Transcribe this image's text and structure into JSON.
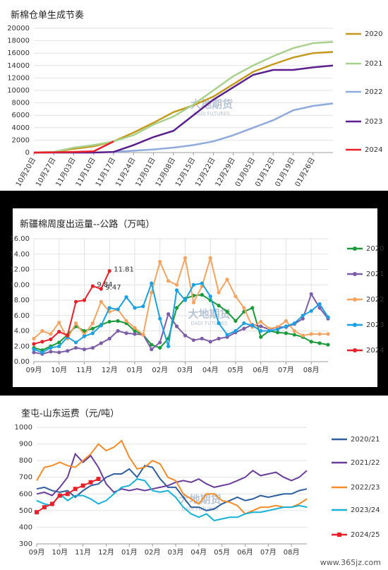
{
  "chart_data": [
    {
      "type": "line",
      "title": "新棉仓单生成节奏",
      "categories": [
        "10月20日",
        "10月27日",
        "11月03日",
        "11月10日",
        "11月17日",
        "11月24日",
        "12月01日",
        "12月08日",
        "12月15日",
        "12月22日",
        "12月29日",
        "01月05日",
        "01月12日",
        "01月19日",
        "01月26日",
        null
      ],
      "ylim": [
        0,
        20000
      ],
      "yticks": [
        0,
        2000,
        4000,
        6000,
        8000,
        10000,
        12000,
        14000,
        16000,
        18000,
        20000
      ],
      "grid": true,
      "legend": "right",
      "series": [
        {
          "name": "2020",
          "color": "#c49a1c",
          "values": [
            0,
            100,
            600,
            1000,
            1800,
            3200,
            4800,
            6500,
            7600,
            9000,
            11000,
            13000,
            14200,
            15300,
            16000,
            16200
          ]
        },
        {
          "name": "2021",
          "color": "#a9d18e",
          "values": [
            0,
            100,
            800,
            1200,
            1800,
            2800,
            4500,
            5800,
            7700,
            10000,
            12300,
            14000,
            15500,
            16800,
            17600,
            17800
          ]
        },
        {
          "name": "2022",
          "color": "#8faadc",
          "values": [
            null,
            null,
            null,
            null,
            100,
            300,
            500,
            800,
            1200,
            1800,
            2800,
            4000,
            5200,
            6800,
            7500,
            7900
          ]
        },
        {
          "name": "2023",
          "color": "#5b1f8c",
          "values": [
            0,
            0,
            0,
            0,
            100,
            1200,
            2500,
            3500,
            6000,
            8500,
            10500,
            12500,
            13300,
            13300,
            13700,
            14000
          ]
        },
        {
          "name": "2024",
          "color": "#e8202a",
          "values": [
            0,
            50,
            100,
            200,
            1800,
            null,
            null,
            null,
            null,
            null,
            null,
            null,
            null,
            null,
            null,
            null
          ]
        }
      ]
    },
    {
      "type": "line",
      "title": "新疆棉周度出运量--公路（万吨）",
      "categories": [
        "09月",
        null,
        null,
        "10月",
        null,
        null,
        "11月",
        null,
        null,
        "12月",
        null,
        null,
        "01月",
        null,
        null,
        "02月",
        null,
        null,
        "03月",
        null,
        null,
        "04月",
        null,
        null,
        "05月",
        null,
        null,
        "06月",
        null,
        null,
        "07月",
        null,
        null,
        "08月",
        null,
        null
      ],
      "ylim": [
        0,
        16
      ],
      "yticks": [
        {
          "value": 0,
          "label": "0.00"
        },
        {
          "value": 2,
          "label": "2.00"
        },
        {
          "value": 4,
          "label": "4.00"
        },
        {
          "value": 6,
          "label": "6.00"
        },
        {
          "value": 8,
          "label": "8.00"
        },
        {
          "value": 10,
          "label": "10.00"
        },
        {
          "value": 12,
          "label": "12.00"
        },
        {
          "value": 14,
          "label": "14.00"
        },
        {
          "value": 16,
          "label": "16.00"
        }
      ],
      "grid": true,
      "xgrid": true,
      "legend": "right",
      "marker": "circle",
      "series": [
        {
          "name": "2020",
          "color": "#1a9b3a",
          "values": [
            1.8,
            1.5,
            2.0,
            2.5,
            3.5,
            4.6,
            4.0,
            4.3,
            4.8,
            5.2,
            5.3,
            5.0,
            4.0,
            3.5,
            2.2,
            1.8,
            3.0,
            7.0,
            8.2,
            8.6,
            8.7,
            8.0,
            7.3,
            6.5,
            5.3,
            6.5,
            7.0,
            3.2,
            4.0,
            3.8,
            3.7,
            3.5,
            3.2,
            2.6,
            2.4,
            2.2
          ]
        },
        {
          "name": "2021",
          "color": "#7b5ea7",
          "values": [
            1.2,
            1.0,
            1.3,
            1.2,
            1.4,
            1.8,
            1.6,
            1.8,
            2.4,
            3.0,
            4.0,
            3.7,
            3.6,
            3.5,
            1.6,
            2.5,
            6.2,
            4.6,
            3.4,
            2.8,
            3.0,
            2.6,
            3.0,
            3.2,
            3.8,
            4.3,
            4.8,
            4.6,
            4.2,
            4.5,
            4.5,
            4.9,
            5.6,
            8.8,
            7.0,
            5.6
          ]
        },
        {
          "name": "2022",
          "color": "#f4a460",
          "values": [
            3.0,
            4.0,
            3.6,
            5.1,
            3.0,
            5.0,
            3.5,
            5.0,
            7.8,
            6.5,
            6.8,
            5.3,
            4.4,
            3.5,
            9.0,
            13.0,
            10.5,
            10.0,
            13.5,
            7.7,
            9.8,
            13.5,
            9.0,
            10.7,
            8.5,
            7.0,
            4.5,
            5.2,
            4.3,
            4.5,
            5.3,
            4.0,
            3.4,
            3.6,
            3.6,
            3.6
          ]
        },
        {
          "name": "2023",
          "color": "#1ba1e2",
          "values": [
            1.6,
            1.2,
            1.8,
            2.0,
            3.2,
            2.5,
            3.3,
            3.7,
            4.7,
            7.0,
            6.8,
            8.4,
            7.0,
            7.2,
            10.2,
            5.6,
            2.0,
            9.3,
            8.0,
            10.0,
            10.2,
            8.5,
            5.0,
            3.5,
            4.0,
            5.0,
            4.7,
            4.0,
            4.0,
            4.2,
            4.6,
            5.0,
            6.0,
            6.6,
            7.5,
            5.8
          ]
        },
        {
          "name": "2024",
          "color": "#e8202a",
          "values": [
            2.3,
            2.6,
            2.9,
            3.9,
            3.4,
            7.8,
            8.0,
            9.84,
            9.47,
            11.81,
            null,
            null,
            null,
            null,
            null,
            null,
            null,
            null,
            null,
            null,
            null,
            null,
            null,
            null,
            null,
            null,
            null,
            null,
            null,
            null,
            null,
            null,
            null,
            null,
            null,
            null
          ],
          "value_labels": [
            null,
            null,
            null,
            null,
            null,
            null,
            null,
            "9.84",
            "9.47",
            "11.81",
            null,
            null,
            null,
            null,
            null,
            null,
            null,
            null,
            null,
            null,
            null,
            null,
            null,
            null,
            null,
            null,
            null,
            null,
            null,
            null,
            null,
            null,
            null,
            null,
            null,
            null
          ]
        }
      ]
    },
    {
      "type": "line",
      "title": "奎屯-山东运费（元/吨）",
      "categories": [
        "09月",
        null,
        null,
        "10月",
        null,
        null,
        "11月",
        null,
        null,
        "12月",
        null,
        null,
        "01月",
        null,
        null,
        "02月",
        null,
        null,
        "03月",
        null,
        null,
        "04月",
        null,
        null,
        "05月",
        null,
        null,
        "06月",
        null,
        null,
        "07月",
        null,
        null,
        "08月",
        null,
        null
      ],
      "ylim": [
        300,
        1000
      ],
      "yticks": [
        300,
        400,
        500,
        600,
        700,
        800,
        900,
        1000
      ],
      "grid": true,
      "legend": "right",
      "series": [
        {
          "name": "2020/21",
          "color": "#2f5f9e",
          "values": [
            630,
            640,
            620,
            610,
            620,
            580,
            620,
            650,
            660,
            700,
            720,
            720,
            750,
            700,
            770,
            760,
            690,
            640,
            640,
            580,
            520,
            520,
            500,
            510,
            540,
            560,
            580,
            560,
            570,
            590,
            580,
            590,
            600,
            600,
            620,
            630
          ]
        },
        {
          "name": "2021/22",
          "color": "#6a3d9a",
          "values": [
            600,
            610,
            590,
            640,
            700,
            840,
            790,
            830,
            760,
            660,
            610,
            630,
            620,
            630,
            620,
            630,
            640,
            650,
            670,
            680,
            670,
            690,
            660,
            640,
            650,
            660,
            680,
            700,
            740,
            710,
            720,
            730,
            700,
            680,
            700,
            740
          ]
        },
        {
          "name": "2022/23",
          "color": "#f28c28",
          "values": [
            680,
            760,
            770,
            790,
            770,
            760,
            800,
            840,
            900,
            860,
            880,
            920,
            820,
            750,
            760,
            800,
            780,
            700,
            680,
            600,
            570,
            540,
            600,
            600,
            560,
            550,
            530,
            480,
            500,
            520,
            520,
            530,
            520,
            520,
            540,
            570
          ]
        },
        {
          "name": "2023/24",
          "color": "#17b2d6",
          "values": [
            560,
            540,
            530,
            600,
            560,
            590,
            590,
            570,
            540,
            560,
            600,
            640,
            650,
            690,
            680,
            620,
            610,
            620,
            580,
            520,
            480,
            460,
            480,
            440,
            450,
            460,
            460,
            480,
            490,
            490,
            500,
            510,
            520,
            520,
            530,
            520
          ]
        },
        {
          "name": "2024/25",
          "color": "#e8202a",
          "marker": "square",
          "values": [
            490,
            520,
            540,
            590,
            600,
            630,
            650,
            670,
            690,
            null,
            null,
            null,
            null,
            null,
            null,
            null,
            null,
            null,
            null,
            null,
            null,
            null,
            null,
            null,
            null,
            null,
            null,
            null,
            null,
            null,
            null,
            null,
            null,
            null,
            null,
            null
          ]
        }
      ]
    }
  ],
  "watermark": {
    "name": "大地期货",
    "sub": "DADI FUTURES"
  },
  "site": "www.365jz.com"
}
